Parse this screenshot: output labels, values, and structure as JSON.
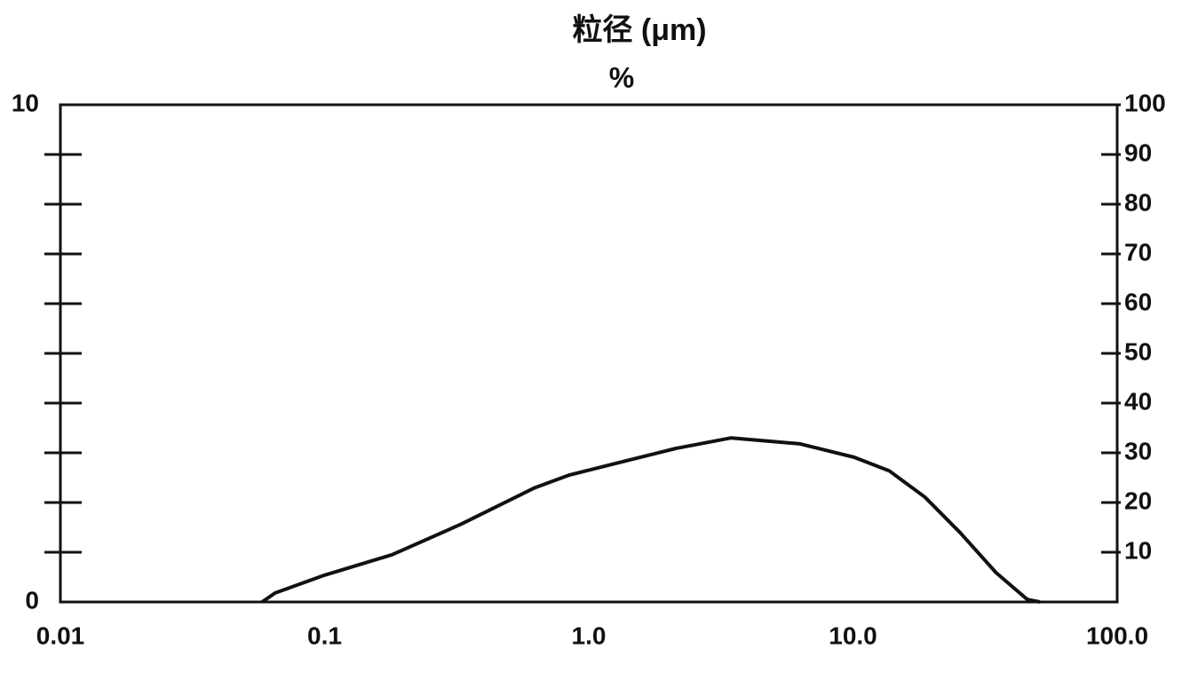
{
  "chart_data": {
    "type": "line",
    "title": "粒径 (μm)",
    "subtitle": "%",
    "xscale": "log",
    "x": [
      0.058,
      0.065,
      0.1,
      0.18,
      0.33,
      0.62,
      0.84,
      1.34,
      2.14,
      3.46,
      6.3,
      10.1,
      13.7,
      18.7,
      25.5,
      34.8,
      45.7,
      51
    ],
    "values": [
      0,
      0.18,
      0.54,
      0.95,
      1.57,
      2.29,
      2.55,
      2.82,
      3.09,
      3.3,
      3.18,
      2.91,
      2.64,
      2.11,
      1.39,
      0.59,
      0.05,
      0
    ],
    "color": "#111111",
    "xlim": [
      0.01,
      100
    ],
    "xticks": [
      0.01,
      0.1,
      {
        "value": 1,
        "label": "1.0"
      },
      {
        "value": 10,
        "label": "10.0"
      },
      {
        "value": 100,
        "label": "100.0"
      }
    ],
    "ylim": [
      0,
      10
    ],
    "yticks": [
      0,
      10
    ],
    "yminor_ticks": [
      1,
      2,
      3,
      4,
      5,
      6,
      7,
      8,
      9
    ],
    "y2lim": [
      0,
      100
    ],
    "y2ticks": [
      10,
      20,
      30,
      40,
      50,
      60,
      70,
      80,
      90,
      100
    ],
    "grid": false
  }
}
